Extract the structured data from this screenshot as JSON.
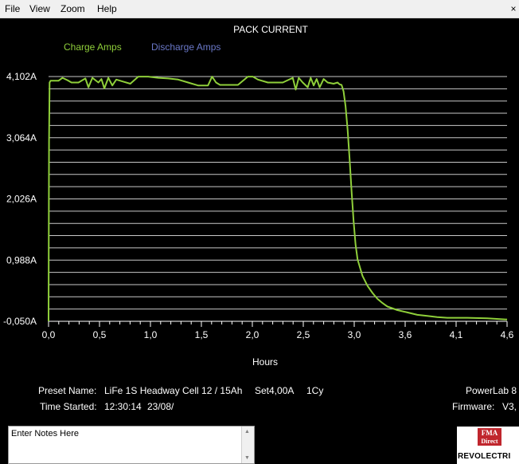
{
  "menu": {
    "items": [
      {
        "label": "File"
      },
      {
        "label": "View"
      },
      {
        "label": "Zoom"
      },
      {
        "label": "Help"
      }
    ],
    "close_label": "×"
  },
  "chart_data": {
    "type": "line",
    "title": "PACK CURRENT",
    "xlabel": "Hours",
    "ylabel": "",
    "x_ticks": [
      "0,0",
      "0,5",
      "1,0",
      "1,5",
      "2,0",
      "2,5",
      "3,0",
      "3,6",
      "4,1",
      "4,6"
    ],
    "y_ticks": [
      "4,102A",
      "3,064A",
      "2,026A",
      "0,988A",
      "-0,050A"
    ],
    "xlim": [
      0,
      4.6
    ],
    "ylim": [
      -0.05,
      4.102
    ],
    "grid": true,
    "legend": [
      {
        "name": "Charge Amps",
        "color": "#8fcf3a"
      },
      {
        "name": "Discharge Amps",
        "color": "#6a78c8"
      }
    ],
    "series": [
      {
        "name": "Charge Amps",
        "color": "#8fcf3a",
        "x": [
          0.0,
          0.005,
          0.01,
          0.02,
          0.1,
          0.14,
          0.19,
          0.23,
          0.3,
          0.37,
          0.4,
          0.44,
          0.5,
          0.53,
          0.56,
          0.6,
          0.64,
          0.68,
          0.74,
          0.82,
          0.9,
          0.94,
          1.0,
          1.1,
          1.2,
          1.3,
          1.4,
          1.5,
          1.6,
          1.64,
          1.68,
          1.72,
          1.8,
          1.9,
          2.0,
          2.05,
          2.1,
          2.2,
          2.35,
          2.45,
          2.48,
          2.51,
          2.55,
          2.6,
          2.63,
          2.66,
          2.69,
          2.72,
          2.76,
          2.8,
          2.86,
          2.9,
          2.92,
          2.94,
          2.96,
          2.98,
          3.0,
          3.02,
          3.04,
          3.06,
          3.08,
          3.1,
          3.15,
          3.2,
          3.25,
          3.3,
          3.35,
          3.4,
          3.5,
          3.6,
          3.7,
          3.8,
          3.9,
          4.0,
          4.2,
          4.4,
          4.6
        ],
        "y": [
          -0.05,
          3.0,
          4.0,
          4.03,
          4.03,
          4.08,
          4.04,
          4.0,
          4.0,
          4.07,
          3.92,
          4.08,
          4.0,
          4.06,
          3.9,
          4.08,
          3.95,
          4.05,
          4.02,
          3.98,
          4.1,
          4.1,
          4.1,
          4.08,
          4.07,
          4.05,
          4.0,
          3.95,
          3.95,
          4.1,
          4.0,
          3.96,
          3.96,
          3.96,
          4.1,
          4.1,
          4.05,
          4.0,
          4.0,
          4.08,
          3.88,
          4.08,
          4.0,
          3.92,
          4.08,
          3.95,
          4.06,
          3.92,
          4.06,
          4.0,
          3.98,
          4.0,
          3.97,
          3.96,
          3.85,
          3.6,
          3.2,
          2.7,
          2.15,
          1.65,
          1.25,
          1.0,
          0.72,
          0.55,
          0.43,
          0.33,
          0.26,
          0.2,
          0.14,
          0.1,
          0.06,
          0.04,
          0.02,
          0.01,
          0.01,
          0.0,
          -0.02
        ]
      }
    ]
  },
  "info": {
    "preset_label": "Preset Name:",
    "preset_value": "LiFe 1S Headway Cell 12 / 15Ah",
    "set_value": "Set4,00A",
    "cycles_value": "1Cy",
    "time_label": "Time Started:",
    "time_value": "12:30:14",
    "date_value": "23/08/",
    "device_name": "PowerLab 8",
    "firmware_label": "Firmware:",
    "firmware_value": "V3,"
  },
  "notes": {
    "placeholder": "Enter Notes Here"
  },
  "logo": {
    "top_text": "FMA",
    "sub_text": "Direct",
    "brand_text": "REVOLECTRI"
  },
  "colors": {
    "background": "#000000",
    "grid": "#c8c8c8",
    "charge": "#8fcf3a",
    "discharge": "#6a78c8"
  }
}
